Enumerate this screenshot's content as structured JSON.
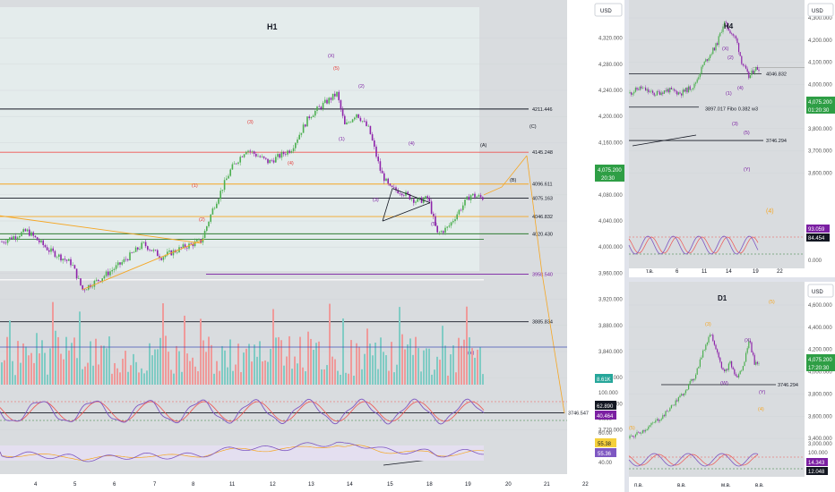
{
  "currency": "USD",
  "colors": {
    "up": "#26a69a",
    "down": "#ef5350",
    "wave": "#7b1fa2",
    "wave_red": "#e53935",
    "orange": "#f5a623",
    "green_line": "#2e7d32",
    "price_tag": "#2e9e45",
    "stoch_k": "#7e57c2",
    "stoch_d": "#ef5350",
    "black_tag": "#131722",
    "shade": "#e8eef0",
    "panel_bg": "#d9dcdf"
  },
  "h1": {
    "title": "H1",
    "price_axis": [
      "4,320.000",
      "4,280.000",
      "4,240.000",
      "4,200.000",
      "4,160.000",
      "4,120.000",
      "4,080.000",
      "4,040.000",
      "4,000.000",
      "3,960.000",
      "3,920.000",
      "3,880.000",
      "3,840.000",
      "3,800.000",
      "3,760.000",
      "3,720.000"
    ],
    "levels": [
      {
        "label": "4211.446",
        "value": 4211.446,
        "color": "#131722"
      },
      {
        "label": "4145.248",
        "value": 4145.248,
        "color": "#ef5350"
      },
      {
        "label": "4096.611",
        "value": 4096.611,
        "color": "#f5a623"
      },
      {
        "label": "4075.163",
        "value": 4075.163,
        "color": "#131722"
      },
      {
        "label": "4046.832",
        "value": 4046.832,
        "color": "#f5a623"
      },
      {
        "label": "4020.430",
        "value": 4020.43,
        "color": "#131722"
      },
      {
        "label": "3958.540",
        "value": 3958.54,
        "color": "#7b1fa2"
      },
      {
        "label": "3885.834",
        "value": 3885.834,
        "color": "#131722"
      },
      {
        "label": "3746.547",
        "value": 3746.547,
        "color": "#131722"
      }
    ],
    "price_tag": "4,075.200",
    "timer": "20:30",
    "volume_tag": "8.61K",
    "stoch_axis": [
      "100.000",
      "0.000"
    ],
    "stoch_k_tag": "62.890",
    "stoch_d_tag": "40.464",
    "rsi_axis": [
      "60.00",
      "40.00"
    ],
    "rsi_tag_1": "55.38",
    "rsi_tag_2": "55.36",
    "x_axis": [
      "4",
      "5",
      "6",
      "7",
      "8",
      "11",
      "12",
      "13",
      "14",
      "15",
      "18",
      "19",
      "20",
      "21",
      "22"
    ],
    "waves": [
      {
        "t": "(X)",
        "c": "wave"
      },
      {
        "t": "(5)",
        "c": "wave_red"
      },
      {
        "t": "(2)",
        "c": "wave"
      },
      {
        "t": "(3)",
        "c": "wave_red"
      },
      {
        "t": "(1)",
        "c": "wave"
      },
      {
        "t": "(4)",
        "c": "wave_red"
      },
      {
        "t": "(4)",
        "c": "wave"
      },
      {
        "t": "(1)",
        "c": "wave_red"
      },
      {
        "t": "(2)",
        "c": "wave_red"
      },
      {
        "t": "(3)",
        "c": "wave"
      },
      {
        "t": "(5)",
        "c": "wave"
      },
      {
        "t": "(C)",
        "c": "black"
      },
      {
        "t": "(A)",
        "c": "black"
      },
      {
        "t": "(B)",
        "c": "black"
      },
      {
        "t": "(Y)",
        "c": "wave"
      }
    ]
  },
  "h4": {
    "title": "H4",
    "price_axis": [
      "4,300.000",
      "4,200.000",
      "4,100.000",
      "4,000.000",
      "3,900.000",
      "3,800.000",
      "3,700.000",
      "3,600.000"
    ],
    "levels": [
      {
        "label": "4046.832",
        "value": 4046.832
      },
      {
        "label": "3897.017 Fibo 0.382 w3",
        "value": 3897.017
      },
      {
        "label": "3746.294",
        "value": 3746.294
      }
    ],
    "price_tag": "4,075.200",
    "timer": "01:20:30",
    "stoch_axis": [
      "100.000",
      "0.000"
    ],
    "stoch_tag_1": "93.059",
    "stoch_tag_2": "84.454",
    "x_axis": [
      "т.в.",
      "6",
      "11",
      "14",
      "19",
      "22"
    ],
    "waves": [
      "(X)",
      "(2)",
      "(1)",
      "(4)",
      "(3)",
      "(5)",
      "(Y)",
      "(4)"
    ]
  },
  "d1": {
    "title": "D1",
    "price_axis": [
      "4,600.000",
      "4,400.000",
      "4,200.000",
      "4,000.000",
      "3,800.000",
      "3,600.000",
      "3,400.000"
    ],
    "level": {
      "label": "3746.294",
      "value": 3746.294
    },
    "price_tag": "4,075.200",
    "timer": "17:20:30",
    "stoch_axis": [
      "3,000.000",
      "100.000",
      "0.000"
    ],
    "stoch_tag_1": "14.343",
    "stoch_tag_2": "12.048",
    "x_axis": [
      "п.в.",
      "в.в.",
      "м.в.",
      "в.в."
    ],
    "waves": [
      "(5)",
      "(3)",
      "(W)",
      "(X)",
      "(Y)",
      "(4)",
      "(5)"
    ]
  },
  "chart_data": [
    {
      "type": "line",
      "title": "H1",
      "x": [
        "4",
        "5",
        "6",
        "7",
        "8",
        "11",
        "12",
        "13",
        "14",
        "15",
        "18",
        "19"
      ],
      "series": [
        {
          "values": [
            4008,
            3935,
            3975,
            4005,
            4010,
            4135,
            4150,
            4225,
            4180,
            4080,
            4015,
            4075
          ]
        }
      ],
      "ylim": [
        3700,
        4340
      ]
    },
    {
      "type": "line",
      "title": "H4",
      "x": [
        "т.в.",
        "6",
        "11",
        "14",
        "19"
      ],
      "series": [
        {
          "values": [
            3940,
            3960,
            4100,
            4280,
            4075
          ]
        }
      ],
      "ylim": [
        3550,
        4350
      ]
    },
    {
      "type": "line",
      "title": "D1",
      "x": [
        "п.в.",
        "в.в.",
        "м.в.",
        "в.в."
      ],
      "series": [
        {
          "values": [
            3400,
            3850,
            4380,
            4075
          ]
        }
      ],
      "ylim": [
        3300,
        4700
      ]
    }
  ]
}
